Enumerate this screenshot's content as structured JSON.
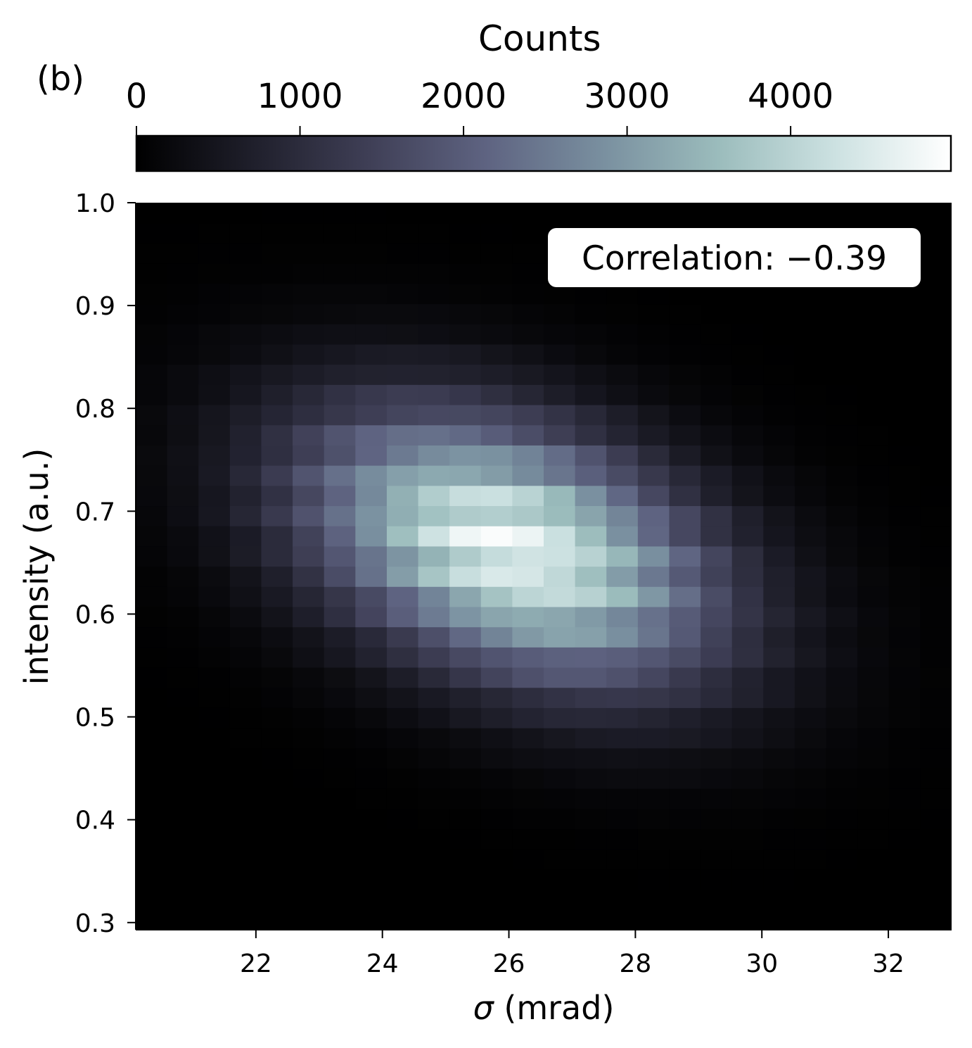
{
  "panel_label": "(b)",
  "colorbar": {
    "title": "Counts",
    "ticks": [
      0,
      1000,
      2000,
      3000,
      4000
    ],
    "tick_labels": [
      "0",
      "1000",
      "2000",
      "3000",
      "4000"
    ],
    "range": [
      0,
      4980
    ],
    "colormap": "bone",
    "colormap_stops": [
      "#000000",
      "#1f1f2b",
      "#3f3f56",
      "#5e6381",
      "#798f9f",
      "#9bbcbc",
      "#cce1e1",
      "#ffffff"
    ]
  },
  "annotation": {
    "text": "Correlation: −0.39"
  },
  "chart_data": {
    "type": "heatmap",
    "title": "",
    "xlabel": "σ (mrad)",
    "ylabel": "intensity (a.u.)",
    "xlim": [
      20.1,
      33.0
    ],
    "ylim": [
      0.293,
      1.0
    ],
    "x_ticks": [
      22,
      24,
      26,
      28,
      30,
      32
    ],
    "x_tick_labels": [
      "22",
      "24",
      "26",
      "28",
      "30",
      "32"
    ],
    "y_ticks": [
      0.3,
      0.4,
      0.5,
      0.6,
      0.7,
      0.8,
      0.9,
      1.0
    ],
    "y_tick_labels": [
      "0.3",
      "0.4",
      "0.5",
      "0.6",
      "0.7",
      "0.8",
      "0.9",
      "1.0"
    ],
    "bins": {
      "nx": 26,
      "ny": 36
    },
    "distribution": {
      "peak_count": 4980,
      "peak_sigma_mrad": 26.0,
      "peak_intensity": 0.665,
      "sigma_spread_mrad": 2.1,
      "intensity_spread": 0.085,
      "correlation": -0.39
    }
  }
}
